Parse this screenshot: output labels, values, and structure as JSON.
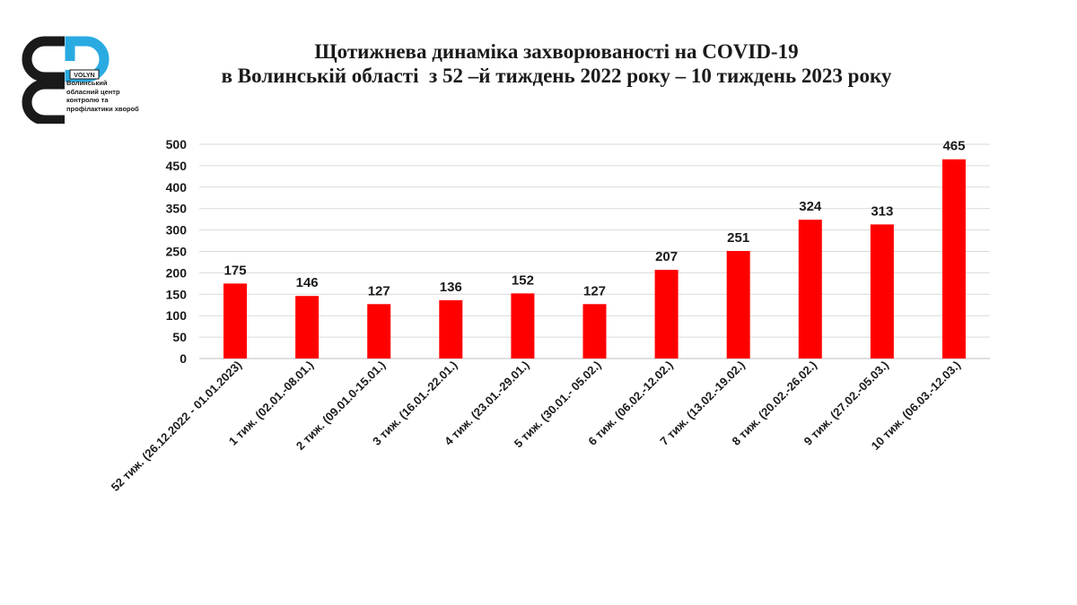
{
  "logo": {
    "badge": "VOLYN",
    "caption_lines": [
      "Волинський",
      "обласний центр",
      "контролю та",
      "профілактики хвороб"
    ],
    "colors": {
      "dark": "#1a1a1a",
      "accent": "#29abe2"
    }
  },
  "chart_data": {
    "type": "bar",
    "title_lines": [
      "Щотижнева динаміка захворюваності на COVID-19",
      "в Волинській області  з 52 –й тиждень 2022 року – 10 тиждень 2023 року"
    ],
    "categories": [
      "52 тиж. (26.12.2022 - 01.01.2023)",
      "1 тиж. (02.01.-08.01.)",
      "2 тиж. (09.01.0-15.01.)",
      "3 тиж. (16.01.-22.01.)",
      "4 тиж. (23.01.-29.01.)",
      "5 тиж. (30.01.- 05.02.)",
      "6 тиж. (06.02.-12.02.)",
      "7 тиж. (13.02.-19.02.)",
      "8 тиж. (20.02.-26.02.)",
      "9 тиж. (27.02.-05.03.)",
      "10 тиж. (06.03.-12.03.)"
    ],
    "values": [
      175,
      146,
      127,
      136,
      152,
      127,
      207,
      251,
      324,
      313,
      465
    ],
    "ylim": [
      0,
      500
    ],
    "yticks": [
      0,
      50,
      100,
      150,
      200,
      250,
      300,
      350,
      400,
      450,
      500
    ],
    "grid": true,
    "data_labels": true,
    "bar_color": "#ff0000",
    "xlabel": "",
    "ylabel": ""
  }
}
